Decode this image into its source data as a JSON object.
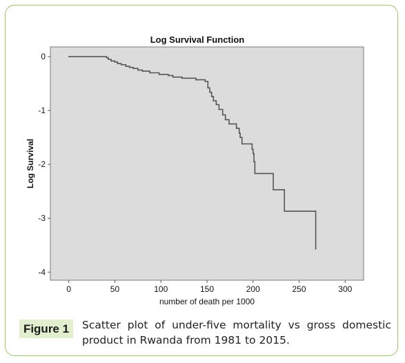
{
  "figure": {
    "label": "Figure 1",
    "caption": "Scatter plot of under-five mortality vs gross domestic product in Rwanda from 1981 to 2015."
  },
  "colors": {
    "frame_border": "#9cc36a",
    "label_background": "#e2efcf",
    "plot_background": "#dcdcdc",
    "line": "#555555"
  },
  "chart_data": {
    "type": "line",
    "step": true,
    "title": "Log Survival Function",
    "xlabel": "number of death per 1000",
    "ylabel": "Log Survival",
    "xlim": [
      -20,
      320
    ],
    "ylim": [
      -4.15,
      0.18
    ],
    "x_ticks": [
      0,
      50,
      100,
      150,
      200,
      250,
      300
    ],
    "y_ticks": [
      0,
      -1,
      -2,
      -3,
      -4
    ],
    "grid": false,
    "legend": "none",
    "series": [
      {
        "x": [
          0,
          41,
          43,
          46,
          50,
          53,
          57,
          62,
          66,
          70,
          75,
          80,
          88,
          98,
          108,
          113,
          123,
          138,
          148,
          151,
          153,
          155,
          157,
          160,
          163,
          167,
          170,
          174,
          182,
          185,
          186,
          188,
          199,
          200,
          201,
          202,
          210,
          222,
          233,
          234,
          267,
          268
        ],
        "y": [
          0,
          -0.02,
          -0.05,
          -0.08,
          -0.1,
          -0.13,
          -0.15,
          -0.18,
          -0.2,
          -0.22,
          -0.25,
          -0.27,
          -0.3,
          -0.33,
          -0.35,
          -0.38,
          -0.4,
          -0.43,
          -0.46,
          -0.58,
          -0.66,
          -0.74,
          -0.82,
          -0.89,
          -0.98,
          -1.08,
          -1.17,
          -1.25,
          -1.33,
          -1.42,
          -1.5,
          -1.62,
          -1.72,
          -1.8,
          -1.95,
          -2.17,
          -2.17,
          -2.47,
          -2.47,
          -2.87,
          -2.87,
          -3.57
        ]
      }
    ]
  }
}
